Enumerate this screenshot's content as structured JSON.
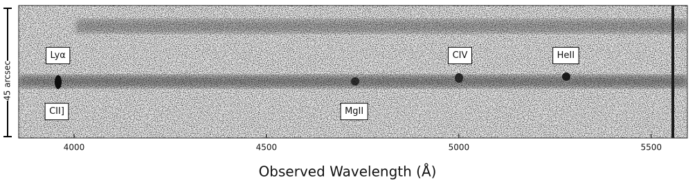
{
  "chart_data": {
    "type": "spectrum2d",
    "xlabel": "Observed Wavelength (Å)",
    "xlim": [
      3856,
      5594
    ],
    "xticks": [
      4000,
      4500,
      5000,
      5500
    ],
    "ylabel": "45 arcsec",
    "ylim": [
      0,
      45
    ],
    "annotations": [
      {
        "text": "Lyα",
        "x": 3958,
        "y": 28
      },
      {
        "text": "CII]",
        "x": 3955,
        "y": 9
      },
      {
        "text": "MgII",
        "x": 4728,
        "y": 9
      },
      {
        "text": "CIV",
        "x": 5003,
        "y": 28
      },
      {
        "text": "HeII",
        "x": 5278,
        "y": 28
      }
    ]
  }
}
